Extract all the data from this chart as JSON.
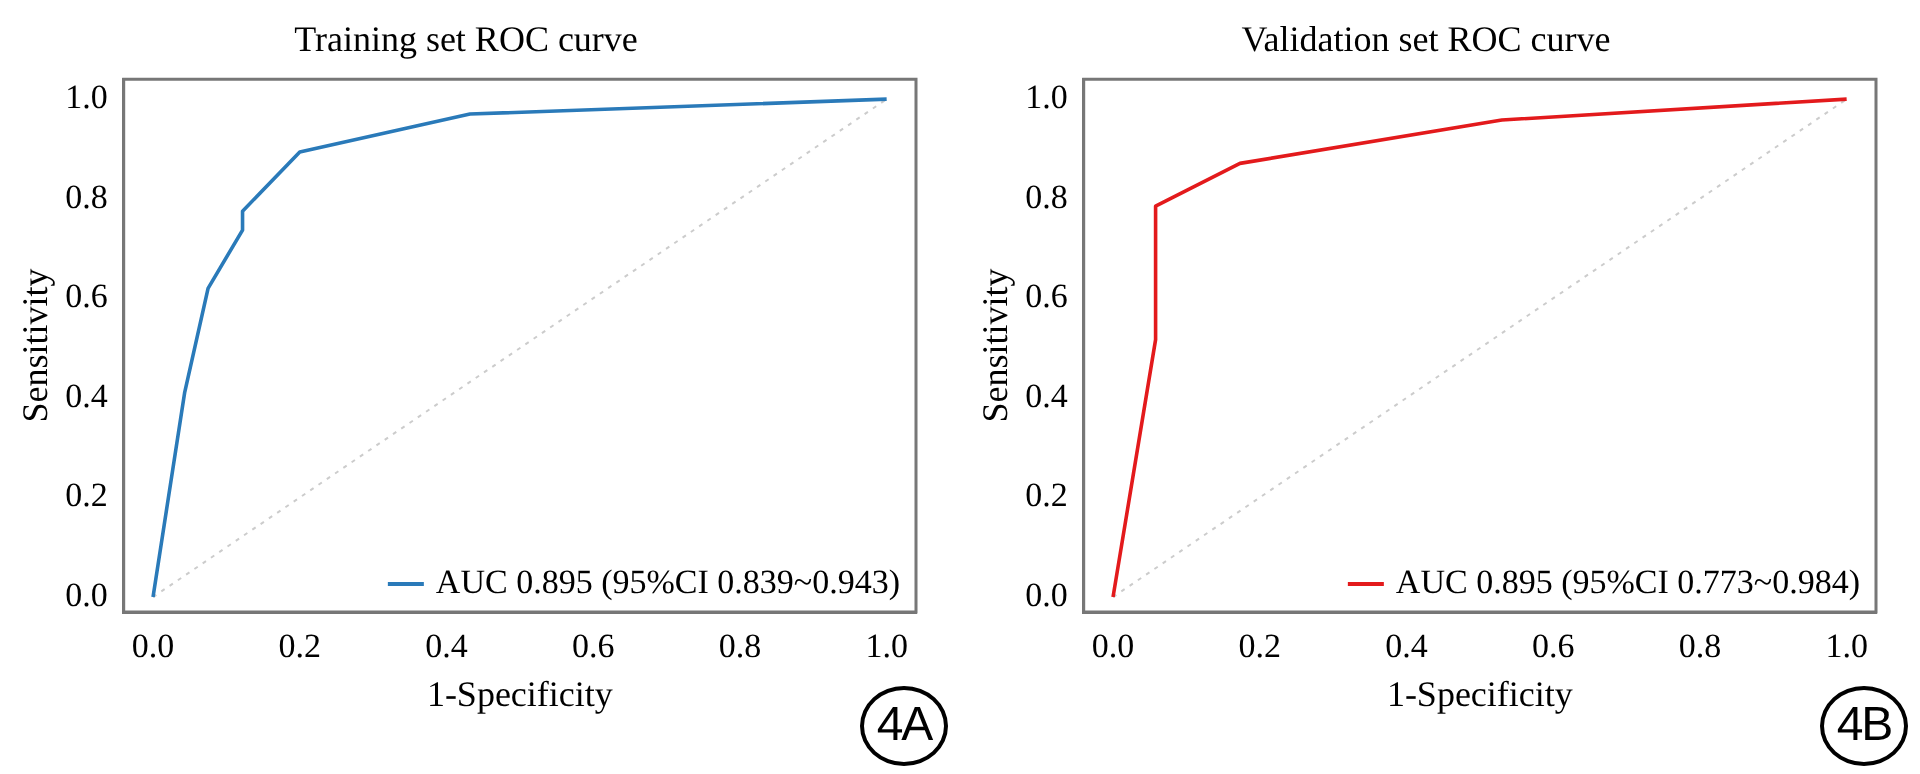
{
  "chart_data": [
    {
      "type": "line",
      "title": "Training set ROC curve",
      "xlabel": "1-Specificity",
      "ylabel": "Sensitivity",
      "xlim": [
        -0.04,
        1.04
      ],
      "ylim": [
        -0.03,
        1.04
      ],
      "xticks": [
        {
          "value": 0,
          "label": "0.0"
        },
        {
          "value": 0.2,
          "label": "0.2"
        },
        {
          "value": 0.4,
          "label": "0.4"
        },
        {
          "value": 0.6,
          "label": "0.6"
        },
        {
          "value": 0.8,
          "label": "0.8"
        },
        {
          "value": 1,
          "label": "1.0"
        }
      ],
      "yticks": [
        {
          "value": 0,
          "label": "0.0"
        },
        {
          "value": 0.2,
          "label": "0.2"
        },
        {
          "value": 0.4,
          "label": "0.4"
        },
        {
          "value": 0.6,
          "label": "0.6"
        },
        {
          "value": 0.8,
          "label": "0.8"
        },
        {
          "value": 1,
          "label": "1.0"
        }
      ],
      "series": [
        {
          "name": "AUC 0.895 (95%CI 0.839~0.943)",
          "color": "#2a7ab9",
          "x": [
            0,
            0.043,
            0.075,
            0.122,
            0.122,
            0.2,
            0.432,
            1
          ],
          "values": [
            0,
            0.41,
            0.62,
            0.737,
            0.775,
            0.894,
            0.97,
            1
          ]
        },
        {
          "color": "#cccccc",
          "line_style": "dotted",
          "x": [
            0,
            1
          ],
          "values": [
            0,
            1
          ]
        }
      ],
      "legend": "bottom right",
      "grid": false,
      "marker": "none",
      "annotations": [
        "4A"
      ]
    },
    {
      "type": "line",
      "title": "Validation set ROC curve",
      "xlabel": "1-Specificity",
      "ylabel": "Sensitivity",
      "xlim": [
        -0.04,
        1.04
      ],
      "ylim": [
        -0.03,
        1.04
      ],
      "xticks": [
        {
          "value": 0,
          "label": "0.0"
        },
        {
          "value": 0.2,
          "label": "0.2"
        },
        {
          "value": 0.4,
          "label": "0.4"
        },
        {
          "value": 0.6,
          "label": "0.6"
        },
        {
          "value": 0.8,
          "label": "0.8"
        },
        {
          "value": 1,
          "label": "1.0"
        }
      ],
      "yticks": [
        {
          "value": 0,
          "label": "0.0"
        },
        {
          "value": 0.2,
          "label": "0.2"
        },
        {
          "value": 0.4,
          "label": "0.4"
        },
        {
          "value": 0.6,
          "label": "0.6"
        },
        {
          "value": 0.8,
          "label": "0.8"
        },
        {
          "value": 1,
          "label": "1.0"
        }
      ],
      "series": [
        {
          "name": "AUC 0.895 (95%CI 0.773~0.984)",
          "color": "#e31a1c",
          "x": [
            0,
            0.058,
            0.058,
            0.173,
            0.53,
            1
          ],
          "values": [
            0,
            0.517,
            0.785,
            0.871,
            0.958,
            1
          ]
        },
        {
          "color": "#cccccc",
          "line_style": "dotted",
          "x": [
            0,
            1
          ],
          "values": [
            0,
            1
          ]
        }
      ],
      "legend": "bottom right",
      "grid": false,
      "marker": "none",
      "annotations": [
        "4B"
      ]
    }
  ]
}
